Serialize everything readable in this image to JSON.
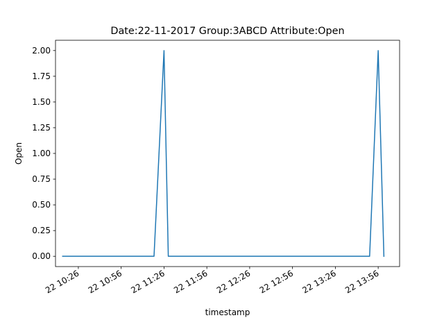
{
  "chart_data": {
    "type": "line",
    "title": "Date:22-11-2017  Group:3ABCD Attribute:Open",
    "xlabel": "timestamp",
    "ylabel": "Open",
    "x_ticks": [
      "22 10:26",
      "22 10:56",
      "22 11:26",
      "22 11:56",
      "22 12:26",
      "22 12:56",
      "22 13:26",
      "22 13:56"
    ],
    "y_ticks": [
      "0.00",
      "0.25",
      "0.50",
      "0.75",
      "1.00",
      "1.25",
      "1.50",
      "1.75",
      "2.00"
    ],
    "xlim": [
      "2017-11-22 10:10",
      "2017-11-22 14:11"
    ],
    "ylim": [
      -0.1,
      2.1
    ],
    "grid": false,
    "legend": "none",
    "color": "#1f77b4",
    "series": [
      {
        "x": [
          "2017-11-22 10:15",
          "2017-11-22 11:19",
          "2017-11-22 11:26",
          "2017-11-22 11:29",
          "2017-11-22 13:50",
          "2017-11-22 13:56",
          "2017-11-22 14:00"
        ],
        "values": [
          0,
          0,
          2,
          0,
          0,
          2,
          0
        ]
      }
    ]
  }
}
